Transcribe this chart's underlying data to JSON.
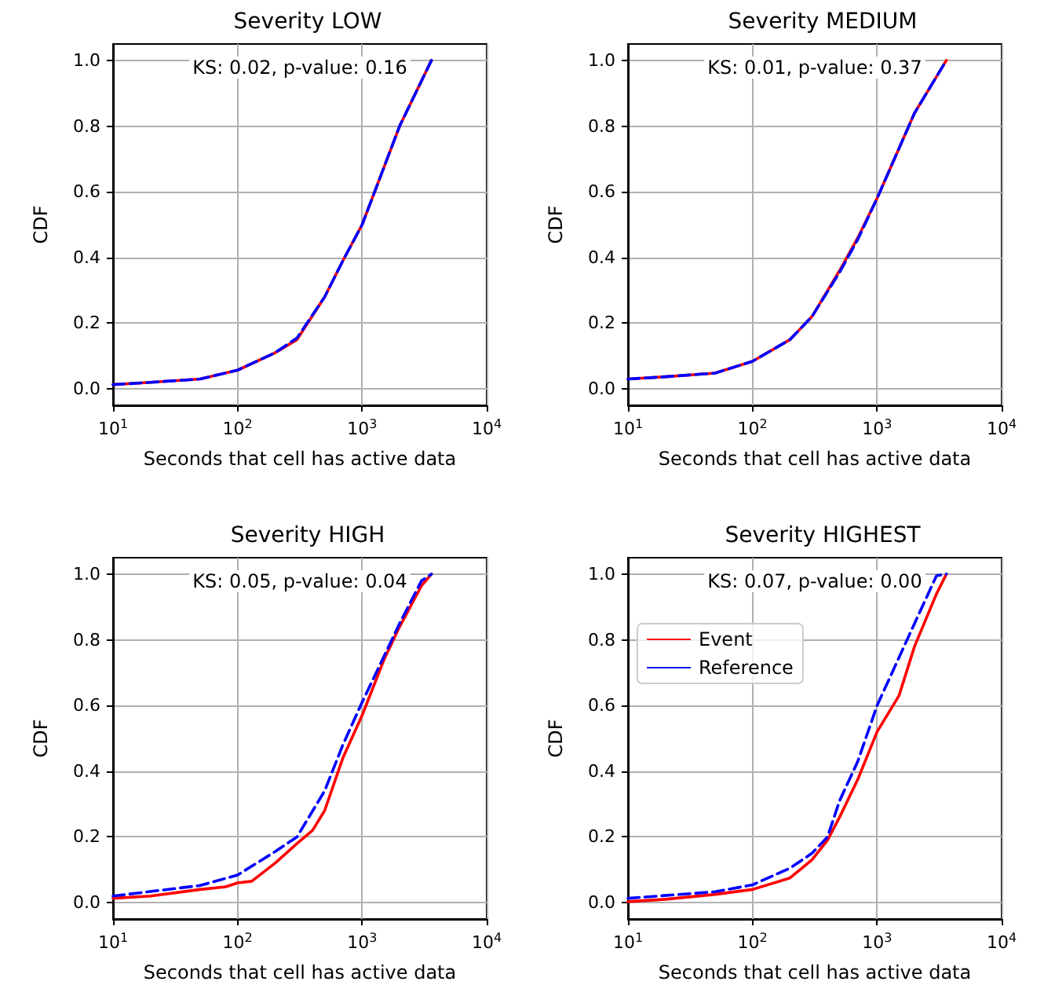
{
  "chart_data": [
    {
      "type": "line",
      "title": "Severity LOW",
      "xlabel": "Seconds that cell has active data",
      "ylabel": "CDF",
      "annotations": [
        "KS: 0.02, p-value: 0.16"
      ],
      "log": "x",
      "grid": true,
      "legend": false,
      "xlim": [
        10,
        10000
      ],
      "ylim": [
        -0.05,
        1.05
      ],
      "xticks": [
        {
          "value": 10,
          "label": "10$^{1}$"
        },
        {
          "value": 100,
          "label": "10$^{2}$"
        },
        {
          "value": 1000,
          "label": "10$^{3}$"
        },
        {
          "value": 10000,
          "label": "10$^{4}$"
        }
      ],
      "yticks": [
        {
          "value": 0,
          "label": "0.0"
        },
        {
          "value": 0.2,
          "label": "0.2"
        },
        {
          "value": 0.4,
          "label": "0.4"
        },
        {
          "value": 0.6,
          "label": "0.6"
        },
        {
          "value": 0.8,
          "label": "0.8"
        },
        {
          "value": 1,
          "label": "1.0"
        }
      ],
      "x": [
        10,
        20,
        50,
        100,
        200,
        300,
        500,
        700,
        1000,
        2000,
        3600
      ],
      "series": [
        {
          "color": "#ff0000",
          "line_style": "solid",
          "values": [
            0.013,
            0.02,
            0.03,
            0.057,
            0.11,
            0.15,
            0.28,
            0.39,
            0.5,
            0.8,
            1.0
          ]
        },
        {
          "color": "#0000ff",
          "line_style": "dashed",
          "values": [
            0.013,
            0.02,
            0.03,
            0.057,
            0.11,
            0.155,
            0.28,
            0.39,
            0.5,
            0.8,
            1.0
          ]
        }
      ]
    },
    {
      "type": "line",
      "title": "Severity MEDIUM",
      "xlabel": "Seconds that cell has active data",
      "ylabel": "CDF",
      "annotations": [
        "KS: 0.01, p-value: 0.37"
      ],
      "log": "x",
      "grid": true,
      "legend": false,
      "xlim": [
        10,
        10000
      ],
      "ylim": [
        -0.05,
        1.05
      ],
      "xticks": [
        {
          "value": 10,
          "label": "10$^{1}$"
        },
        {
          "value": 100,
          "label": "10$^{2}$"
        },
        {
          "value": 1000,
          "label": "10$^{3}$"
        },
        {
          "value": 10000,
          "label": "10$^{4}$"
        }
      ],
      "yticks": [
        {
          "value": 0,
          "label": "0.0"
        },
        {
          "value": 0.2,
          "label": "0.2"
        },
        {
          "value": 0.4,
          "label": "0.4"
        },
        {
          "value": 0.6,
          "label": "0.6"
        },
        {
          "value": 0.8,
          "label": "0.8"
        },
        {
          "value": 1,
          "label": "1.0"
        }
      ],
      "x": [
        10,
        20,
        50,
        100,
        200,
        300,
        500,
        700,
        1000,
        2000,
        3600
      ],
      "series": [
        {
          "color": "#ff0000",
          "line_style": "solid",
          "values": [
            0.03,
            0.037,
            0.048,
            0.084,
            0.15,
            0.22,
            0.36,
            0.46,
            0.58,
            0.84,
            1.0
          ]
        },
        {
          "color": "#0000ff",
          "line_style": "dashed",
          "values": [
            0.03,
            0.037,
            0.048,
            0.084,
            0.15,
            0.22,
            0.355,
            0.455,
            0.58,
            0.84,
            1.0
          ]
        }
      ]
    },
    {
      "type": "line",
      "title": "Severity HIGH",
      "xlabel": "Seconds that cell has active data",
      "ylabel": "CDF",
      "annotations": [
        "KS: 0.05, p-value: 0.04"
      ],
      "log": "x",
      "grid": true,
      "legend": false,
      "xlim": [
        10,
        10000
      ],
      "ylim": [
        -0.05,
        1.05
      ],
      "xticks": [
        {
          "value": 10,
          "label": "10$^{1}$"
        },
        {
          "value": 100,
          "label": "10$^{2}$"
        },
        {
          "value": 1000,
          "label": "10$^{3}$"
        },
        {
          "value": 10000,
          "label": "10$^{4}$"
        }
      ],
      "yticks": [
        {
          "value": 0,
          "label": "0.0"
        },
        {
          "value": 0.2,
          "label": "0.2"
        },
        {
          "value": 0.4,
          "label": "0.4"
        },
        {
          "value": 0.6,
          "label": "0.6"
        },
        {
          "value": 0.8,
          "label": "0.8"
        },
        {
          "value": 1,
          "label": "1.0"
        }
      ],
      "series": [
        {
          "color": "#ff0000",
          "line_style": "solid",
          "x": [
            10,
            20,
            50,
            80,
            100,
            130,
            200,
            300,
            400,
            500,
            700,
            1000,
            1500,
            2000,
            3000,
            3600
          ],
          "values": [
            0.013,
            0.02,
            0.04,
            0.048,
            0.06,
            0.065,
            0.12,
            0.18,
            0.22,
            0.28,
            0.44,
            0.57,
            0.74,
            0.84,
            0.965,
            1.0
          ]
        },
        {
          "color": "#0000ff",
          "line_style": "dashed",
          "x": [
            10,
            50,
            100,
            200,
            300,
            500,
            700,
            1000,
            2000,
            3000,
            3600
          ],
          "values": [
            0.02,
            0.052,
            0.084,
            0.155,
            0.2,
            0.34,
            0.48,
            0.61,
            0.85,
            0.98,
            1.0
          ]
        }
      ]
    },
    {
      "type": "line",
      "title": "Severity HIGHEST",
      "xlabel": "Seconds that cell has active data",
      "ylabel": "CDF",
      "annotations": [
        "KS: 0.07, p-value: 0.00"
      ],
      "log": "x",
      "grid": true,
      "legend": "upper left",
      "xlim": [
        10,
        10000
      ],
      "ylim": [
        -0.05,
        1.05
      ],
      "xticks": [
        {
          "value": 10,
          "label": "10$^{1}$"
        },
        {
          "value": 100,
          "label": "10$^{2}$"
        },
        {
          "value": 1000,
          "label": "10$^{3}$"
        },
        {
          "value": 10000,
          "label": "10$^{4}$"
        }
      ],
      "yticks": [
        {
          "value": 0,
          "label": "0.0"
        },
        {
          "value": 0.2,
          "label": "0.2"
        },
        {
          "value": 0.4,
          "label": "0.4"
        },
        {
          "value": 0.6,
          "label": "0.6"
        },
        {
          "value": 0.8,
          "label": "0.8"
        },
        {
          "value": 1,
          "label": "1.0"
        }
      ],
      "series": [
        {
          "name": "Event",
          "color": "#ff0000",
          "line_style": "solid",
          "x": [
            10,
            20,
            50,
            100,
            200,
            300,
            400,
            500,
            700,
            1000,
            1500,
            2000,
            3000,
            3600
          ],
          "values": [
            0.003,
            0.01,
            0.025,
            0.04,
            0.075,
            0.13,
            0.19,
            0.26,
            0.375,
            0.52,
            0.63,
            0.78,
            0.94,
            1.0
          ]
        },
        {
          "name": "Reference",
          "color": "#0000ff",
          "line_style": "dashed",
          "x": [
            10,
            50,
            100,
            200,
            300,
            400,
            500,
            700,
            1000,
            2000,
            3000,
            3600
          ],
          "values": [
            0.013,
            0.033,
            0.054,
            0.105,
            0.15,
            0.2,
            0.31,
            0.43,
            0.6,
            0.85,
            0.995,
            1.0
          ]
        }
      ]
    }
  ]
}
